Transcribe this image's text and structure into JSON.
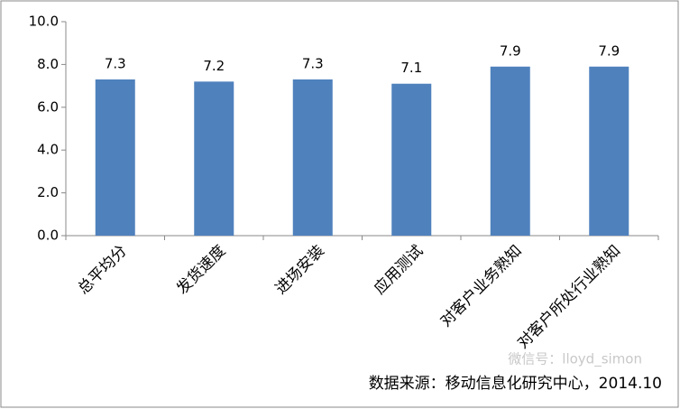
{
  "chart_data": {
    "type": "bar",
    "categories": [
      "总平均分",
      "发货速度",
      "进场安装",
      "应用测试",
      "对客户业务熟知",
      "对客户所处行业熟知"
    ],
    "values": [
      7.3,
      7.2,
      7.3,
      7.1,
      7.9,
      7.9
    ],
    "color": "#4f81bd",
    "ylim": [
      0,
      10
    ],
    "yticks": [
      {
        "value": 0,
        "label": "0.0"
      },
      {
        "value": 2,
        "label": "2.0"
      },
      {
        "value": 4,
        "label": "4.0"
      },
      {
        "value": 6,
        "label": "6.0"
      },
      {
        "value": 8,
        "label": "8.0"
      },
      {
        "value": 10,
        "label": "10.0"
      }
    ],
    "grid": false,
    "source": "数据来源：移动信息化研究中心，2014.10",
    "watermark": "微信号：lloyd_simon"
  }
}
